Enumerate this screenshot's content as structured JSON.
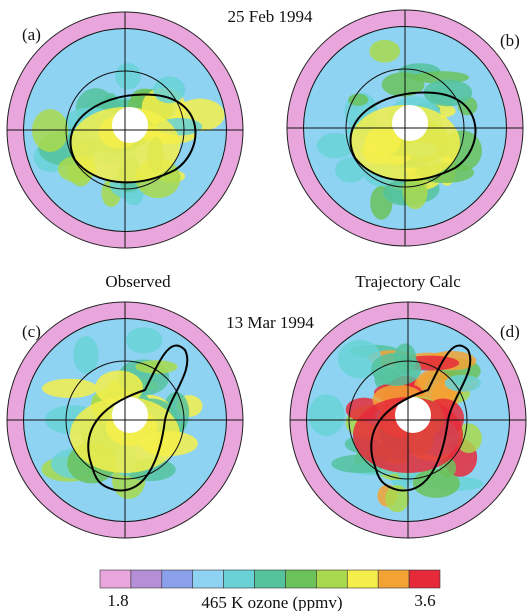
{
  "panels": [
    {
      "label": "(a)",
      "date": "25 Feb 1994"
    },
    {
      "label": "(b)"
    },
    {
      "label": "(c)",
      "date": "13 Mar 1994"
    },
    {
      "label": "(d)"
    }
  ],
  "captions": [
    "Observed",
    "Trajectory Calc"
  ],
  "colorbar": {
    "min": 1.8,
    "max": 3.6,
    "label": "465 K ozone (ppmv)",
    "colors": [
      "#e9a6dc",
      "#b48fd8",
      "#8aa0ea",
      "#8fd3f3",
      "#69d2d6",
      "#55c39c",
      "#6bc25a",
      "#a9d94c",
      "#f4ee4a",
      "#f3a234",
      "#e62a3a"
    ]
  }
}
